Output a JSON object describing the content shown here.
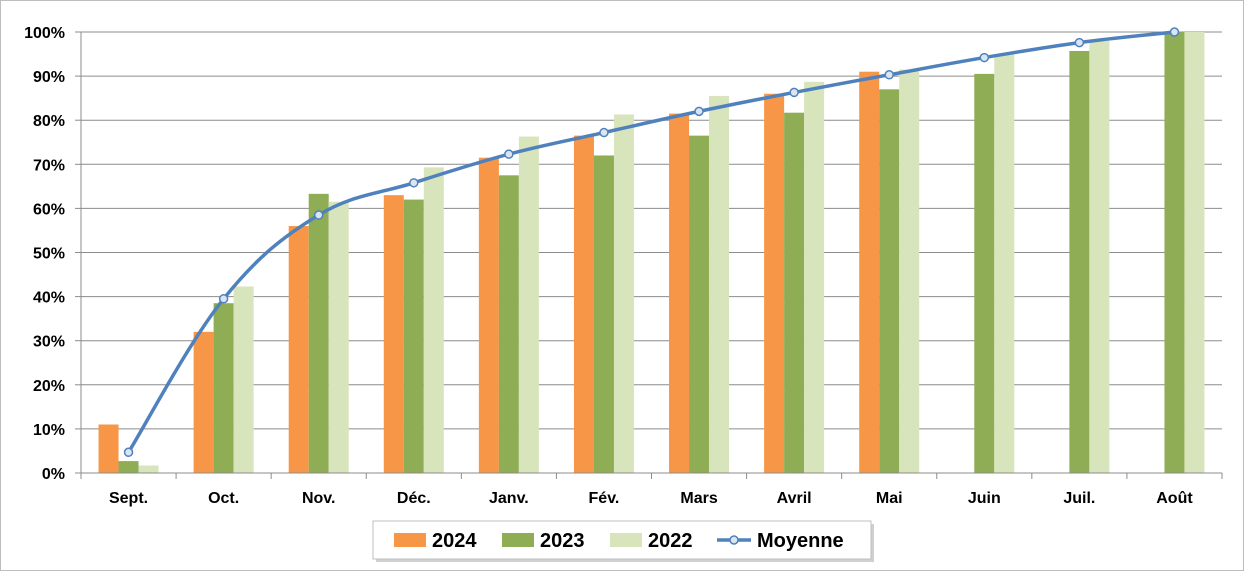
{
  "chart_data": {
    "type": "bar",
    "categories": [
      "Sept.",
      "Oct.",
      "Nov.",
      "Déc.",
      "Janv.",
      "Fév.",
      "Mars",
      "Avril",
      "Mai",
      "Juin",
      "Juil.",
      "Août"
    ],
    "series": [
      {
        "name": "2024",
        "type": "bar",
        "color": "#F79646",
        "values": [
          11,
          32,
          56,
          63,
          71.5,
          76.5,
          81.5,
          86,
          91,
          null,
          null,
          null
        ]
      },
      {
        "name": "2023",
        "type": "bar",
        "color": "#8EAD55",
        "values": [
          2.7,
          38.5,
          63.3,
          62,
          67.5,
          72,
          76.5,
          81.7,
          87,
          90.5,
          95.7,
          100
        ]
      },
      {
        "name": "2022",
        "type": "bar",
        "color": "#D8E4BC",
        "values": [
          1.7,
          42.3,
          61.5,
          69.3,
          76.3,
          81.3,
          85.5,
          88.7,
          91.5,
          95,
          98,
          100
        ]
      },
      {
        "name": "Moyenne",
        "type": "line",
        "color": "#4F81BD",
        "values": [
          4.7,
          39.5,
          58.5,
          65.8,
          72.3,
          77.2,
          82,
          86.3,
          90.3,
          94.2,
          97.6,
          100
        ]
      }
    ],
    "y_ticks": [
      "0%",
      "10%",
      "20%",
      "30%",
      "40%",
      "50%",
      "60%",
      "70%",
      "80%",
      "90%",
      "100%"
    ],
    "ylim": [
      0,
      100
    ],
    "grid": true,
    "legend_position": "bottom",
    "title": "",
    "xlabel": "",
    "ylabel": ""
  }
}
